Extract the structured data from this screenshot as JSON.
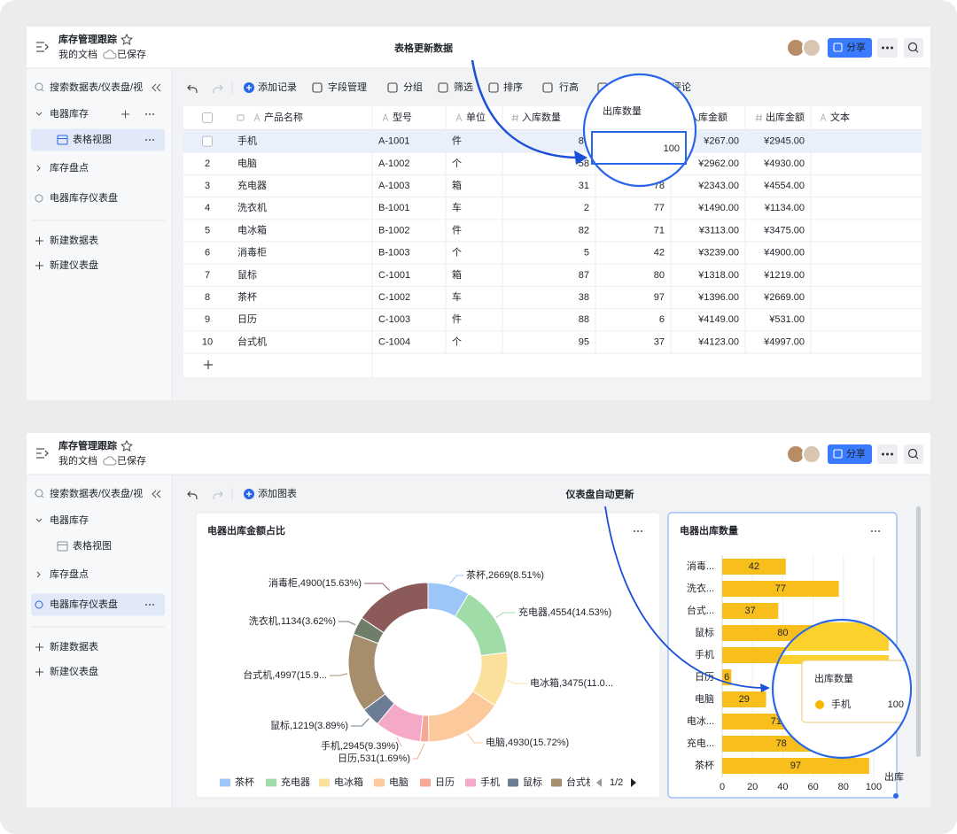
{
  "app": {
    "title": "库存管理跟踪",
    "folder": "我的文档",
    "status": "已保存",
    "share": "分享"
  },
  "sidebar": {
    "search": "搜索数据表/仪表盘/视图",
    "items": [
      "电器库存",
      "表格视图",
      "库存盘点",
      "电器库存仪表盘"
    ],
    "actions": [
      "新建数据表",
      "新建仪表盘"
    ]
  },
  "toolbar": [
    "添加记录",
    "字段管理",
    "分组",
    "筛选",
    "排序",
    "行高",
    "评论"
  ],
  "dashboard_toolbar": "添加图表",
  "table": {
    "columns": [
      "产品名称",
      "型号",
      "单位",
      "入库数量",
      "出库数量",
      "入库金额",
      "出库金额",
      "文本"
    ],
    "rows": [
      {
        "cells": [
          "手机",
          "A-1001",
          "件",
          80,
          100,
          "¥267.00",
          "¥2945.00"
        ]
      },
      {
        "index": 2,
        "cells": [
          "电脑",
          "A-1002",
          "个",
          58,
          null,
          "¥2962.00",
          "¥4930.00"
        ]
      },
      {
        "index": 3,
        "cells": [
          "充电器",
          "A-1003",
          "箱",
          31,
          78,
          "¥2343.00",
          "¥4554.00"
        ]
      },
      {
        "index": 4,
        "cells": [
          "洗衣机",
          "B-1001",
          "车",
          2,
          77,
          "¥1490.00",
          "¥1134.00"
        ]
      },
      {
        "index": 5,
        "cells": [
          "电冰箱",
          "B-1002",
          "件",
          82,
          71,
          "¥3113.00",
          "¥3475.00"
        ]
      },
      {
        "index": 6,
        "cells": [
          "消毒柜",
          "B-1003",
          "个",
          5,
          42,
          "¥3239.00",
          "¥4900.00"
        ]
      },
      {
        "index": 7,
        "cells": [
          "鼠标",
          "C-1001",
          "箱",
          87,
          80,
          "¥1318.00",
          "¥1219.00"
        ]
      },
      {
        "index": 8,
        "cells": [
          "茶杯",
          "C-1002",
          "车",
          38,
          97,
          "¥1396.00",
          "¥2669.00"
        ]
      },
      {
        "index": 9,
        "cells": [
          "日历",
          "C-1003",
          "件",
          88,
          6,
          "¥4149.00",
          "¥531.00"
        ]
      },
      {
        "index": 10,
        "cells": [
          "台式机",
          "C-1004",
          "个",
          95,
          37,
          "¥4123.00",
          "¥4997.00"
        ]
      }
    ]
  },
  "callouts": {
    "table_note": "表格更新数据",
    "dashboard_note": "仪表盘自动更新",
    "table_zoom": {
      "header": "出库数量",
      "value": 100
    }
  },
  "chart_data": [
    {
      "type": "pie",
      "title": "电器出库金额占比",
      "categories": [
        "茶杯",
        "充电器",
        "电冰箱",
        "电脑",
        "日历",
        "手机",
        "鼠标",
        "台式机",
        "洗衣机",
        "消毒柜"
      ],
      "values": [
        2669,
        4554,
        3475,
        4930,
        531,
        2945,
        1219,
        4997,
        1134,
        4900
      ],
      "value_labels": [
        "茶杯,2669(8.51%)",
        "充电器,4554(14.53%)",
        "电冰箱,3475(11.0...",
        "电脑,4930(15.72%)",
        "日历,531(1.69%)",
        "手机,2945(9.39%)",
        "鼠标,1219(3.89%)",
        "台式机,4997(15.9...",
        "洗衣机,1134(3.62%)",
        "消毒柜,4900(15.63%)"
      ],
      "colors": [
        "#9cc6f8",
        "#9fdca7",
        "#fbe09c",
        "#fcc99d",
        "#f6a796",
        "#f6a8c8",
        "#6c7c94",
        "#a68e6c",
        "#6f7d6b",
        "#8d5a5a"
      ],
      "legend_page": "1/2"
    },
    {
      "type": "bar",
      "orientation": "horizontal",
      "title": "电器出库数量",
      "categories": [
        "消毒...",
        "洗衣...",
        "台式...",
        "鼠标",
        "手机",
        "日历",
        "电脑",
        "电冰...",
        "充电...",
        "茶杯"
      ],
      "values": [
        42,
        77,
        37,
        80,
        100,
        6,
        29,
        71,
        78,
        97
      ],
      "color": "#f8bf1c",
      "xlim": [
        0,
        100
      ],
      "xticks": [
        0,
        20,
        40,
        60,
        80,
        100
      ],
      "x_label": "出库",
      "grid": true,
      "tooltip": {
        "title": "出库数量",
        "name": "手机",
        "value": 100
      }
    }
  ]
}
